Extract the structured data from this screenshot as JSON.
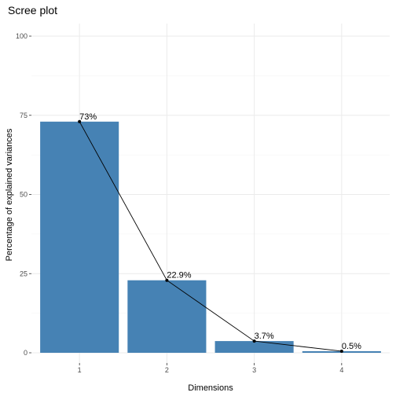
{
  "chart_data": {
    "type": "bar",
    "title": "Scree plot",
    "xlabel": "Dimensions",
    "ylabel": "Percentage of explained variances",
    "categories": [
      "1",
      "2",
      "3",
      "4"
    ],
    "values": [
      73.0,
      22.9,
      3.7,
      0.5
    ],
    "data_labels": [
      "73%",
      "22.9%",
      "3.7%",
      "0.5%"
    ],
    "ylim": [
      0,
      100
    ],
    "y_ticks": [
      0,
      25,
      50,
      75,
      100
    ],
    "line_overlay": true,
    "grid": true,
    "colors": {
      "bar": "#4682B4",
      "line": "#000000",
      "point": "#000000"
    }
  }
}
